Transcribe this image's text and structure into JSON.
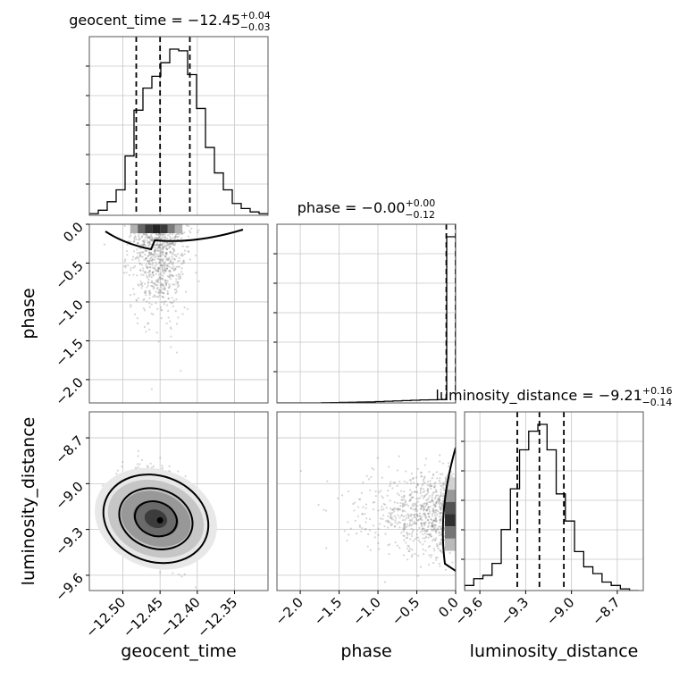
{
  "chart_data": {
    "type": "corner",
    "grid": true,
    "parameters": [
      {
        "name": "geocent_time",
        "median": "−12.45",
        "upper": "+0.04",
        "lower": "−0.03",
        "ticks": [
          "−12.50",
          "−12.45",
          "−12.40",
          "−12.35"
        ],
        "tick_values": [
          -12.5,
          -12.45,
          -12.4,
          -12.35
        ],
        "range": [
          -12.545,
          -12.305
        ]
      },
      {
        "name": "phase",
        "median": "−0.00",
        "upper": "+0.00",
        "lower": "−0.12",
        "ticks": [
          "−2.0",
          "−1.5",
          "−1.0",
          "−0.5",
          "0.0"
        ],
        "tick_values": [
          -2.0,
          -1.5,
          -1.0,
          -0.5,
          0.0
        ],
        "range": [
          -2.3,
          0.0
        ]
      },
      {
        "name": "luminosity_distance",
        "median": "−9.21",
        "upper": "+0.16",
        "lower": "−0.14",
        "ticks": [
          "−9.6",
          "−9.3",
          "−9.0",
          "−8.7"
        ],
        "tick_values": [
          -9.6,
          -9.3,
          -9.0,
          -8.7
        ],
        "range": [
          -9.7,
          -8.53
        ]
      }
    ],
    "diagonal": [
      {
        "param": "geocent_time",
        "quantile_lines": [
          -12.482,
          -12.45,
          -12.41
        ],
        "hist_edges": [
          -12.545,
          -12.533,
          -12.521,
          -12.509,
          -12.497,
          -12.485,
          -12.473,
          -12.461,
          -12.449,
          -12.437,
          -12.425,
          -12.413,
          -12.401,
          -12.389,
          -12.377,
          -12.365,
          -12.353,
          -12.341,
          -12.329,
          -12.317,
          -12.305
        ],
        "hist_counts": [
          0.01,
          0.03,
          0.08,
          0.15,
          0.35,
          0.62,
          0.75,
          0.82,
          0.9,
          0.98,
          0.97,
          0.83,
          0.63,
          0.4,
          0.25,
          0.15,
          0.07,
          0.04,
          0.02,
          0.01
        ]
      },
      {
        "param": "phase",
        "quantile_lines": [
          -0.12,
          -0.001
        ],
        "hist_edges": [
          -2.3,
          -2.185,
          -2.07,
          -1.955,
          -1.84,
          -1.725,
          -1.61,
          -1.495,
          -1.38,
          -1.265,
          -1.15,
          -1.035,
          -0.92,
          -0.805,
          -0.69,
          -0.575,
          -0.46,
          -0.345,
          -0.23,
          -0.115,
          0.0
        ],
        "hist_counts": [
          0.0,
          0.0,
          0.0,
          0.0,
          0.0,
          0.001,
          0.002,
          0.003,
          0.004,
          0.005,
          0.006,
          0.008,
          0.01,
          0.012,
          0.014,
          0.016,
          0.018,
          0.019,
          0.02,
          1.0
        ]
      },
      {
        "param": "luminosity_distance",
        "quantile_lines": [
          -9.355,
          -9.21,
          -9.05
        ],
        "hist_edges": [
          -9.7,
          -9.64,
          -9.58,
          -9.52,
          -9.46,
          -9.4,
          -9.34,
          -9.28,
          -9.22,
          -9.16,
          -9.1,
          -9.04,
          -8.98,
          -8.92,
          -8.86,
          -8.8,
          -8.74,
          -8.68,
          -8.62,
          -8.56
        ],
        "hist_counts": [
          0.03,
          0.07,
          0.09,
          0.16,
          0.36,
          0.6,
          0.83,
          0.94,
          0.98,
          0.83,
          0.57,
          0.41,
          0.23,
          0.14,
          0.1,
          0.05,
          0.03,
          0.01,
          0.0
        ]
      }
    ],
    "pairs": [
      {
        "x": "geocent_time",
        "y": "phase",
        "kind": "scatter-with-density"
      },
      {
        "x": "geocent_time",
        "y": "luminosity_distance",
        "kind": "scatter-with-density",
        "peak": [
          -12.45,
          -9.24
        ]
      },
      {
        "x": "phase",
        "y": "luminosity_distance",
        "kind": "scatter-with-density"
      }
    ]
  }
}
